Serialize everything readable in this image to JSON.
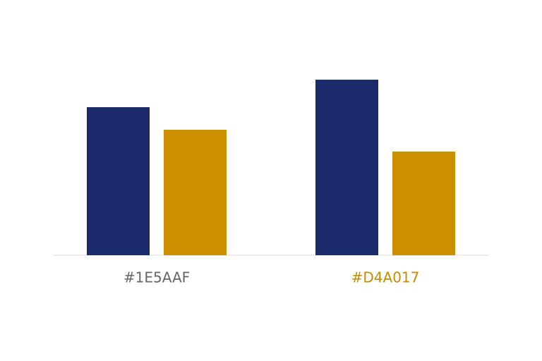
{
  "chart_data": {
    "type": "bar",
    "categories": [
      "#1E5AAF",
      "#D4A017"
    ],
    "series": [
      {
        "color": "#1b2a6b",
        "values": [
          210,
          249
        ]
      },
      {
        "color": "#cc8f00",
        "values": [
          178,
          147
        ]
      }
    ]
  }
}
